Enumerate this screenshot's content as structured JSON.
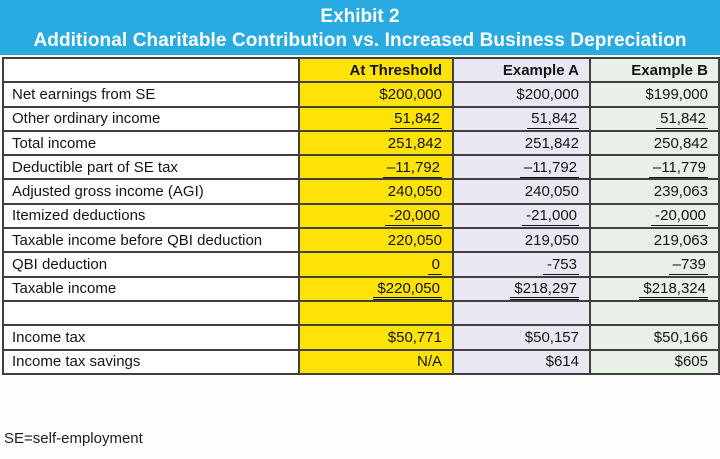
{
  "banner": {
    "line1": "Exhibit 2",
    "line2": "Additional Charitable Contribution vs. Increased Business Depreciation"
  },
  "chart_data": {
    "type": "table",
    "title": "Exhibit 2 — Additional Charitable Contribution vs. Increased Business Depreciation",
    "columns": [
      "",
      "At Threshold",
      "Example A",
      "Example B"
    ],
    "rows": [
      {
        "label": "Net earnings from SE",
        "values": [
          "$200,000",
          "$200,000",
          "$199,000"
        ],
        "underline": "none"
      },
      {
        "label": "Other ordinary income",
        "values": [
          "51,842",
          "51,842",
          "51,842"
        ],
        "underline": "single"
      },
      {
        "label": "Total income",
        "values": [
          "251,842",
          "251,842",
          "250,842"
        ],
        "underline": "none"
      },
      {
        "label": "Deductible part of SE tax",
        "values": [
          "–11,792",
          "–11,792",
          "–11,779"
        ],
        "underline": "single"
      },
      {
        "label": "Adjusted gross income (AGI)",
        "values": [
          "240,050",
          "240,050",
          "239,063"
        ],
        "underline": "none"
      },
      {
        "label": "Itemized deductions",
        "values": [
          "-20,000",
          "-21,000",
          "-20,000"
        ],
        "underline": "single"
      },
      {
        "label": "Taxable income before QBI deduction",
        "values": [
          "220,050",
          "219,050",
          "219,063"
        ],
        "underline": "none"
      },
      {
        "label": "QBI deduction",
        "values": [
          "0",
          "-753",
          "–739"
        ],
        "underline": "single"
      },
      {
        "label": "Taxable income",
        "values": [
          "$220,050",
          "$218,297",
          "$218,324"
        ],
        "underline": "double"
      },
      {
        "label": "",
        "values": [
          "",
          "",
          ""
        ],
        "underline": "none"
      },
      {
        "label": "Income tax",
        "values": [
          "$50,771",
          "$50,157",
          "$50,166"
        ],
        "underline": "none"
      },
      {
        "label": "Income tax savings",
        "values": [
          "N/A",
          "$614",
          "$605"
        ],
        "underline": "none"
      }
    ]
  },
  "footnote": "SE=self-employment",
  "colors": {
    "banner_blue": "#29abe2",
    "threshold_yellow": "#ffe306",
    "example_a_lavender": "#e9e7f1",
    "example_b_green": "#e8f0e7",
    "grid": "#404040"
  }
}
